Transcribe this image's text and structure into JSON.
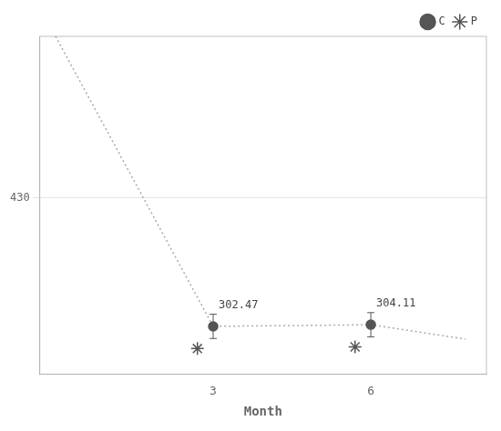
{
  "chart_data": {
    "type": "line",
    "xlabel": "Month",
    "xlim": [
      -0.3,
      8.2
    ],
    "xticks": [
      3,
      6
    ],
    "ylim": [
      255,
      590
    ],
    "yticks": [
      430
    ],
    "grid": "y",
    "legend": "upper right",
    "series": [
      {
        "type": "line",
        "line_style": "dotted",
        "color": "#aaaaaa",
        "x": [
          0,
          3,
          6,
          7.8
        ],
        "values": [
          590,
          302.47,
          304.11,
          290
        ]
      },
      {
        "name": "C",
        "type": "scatter",
        "marker": "circle",
        "color": "#555555",
        "x": [
          3,
          6
        ],
        "values": [
          302.47,
          304.11
        ],
        "error_up": [
          12,
          12
        ],
        "error_down": [
          12,
          12
        ],
        "data_labels": true
      },
      {
        "name": "P",
        "type": "scatter",
        "marker": "star",
        "color": "#555555",
        "x": [
          2.7,
          5.7
        ],
        "values": [
          280.47,
          282.11
        ]
      }
    ]
  }
}
